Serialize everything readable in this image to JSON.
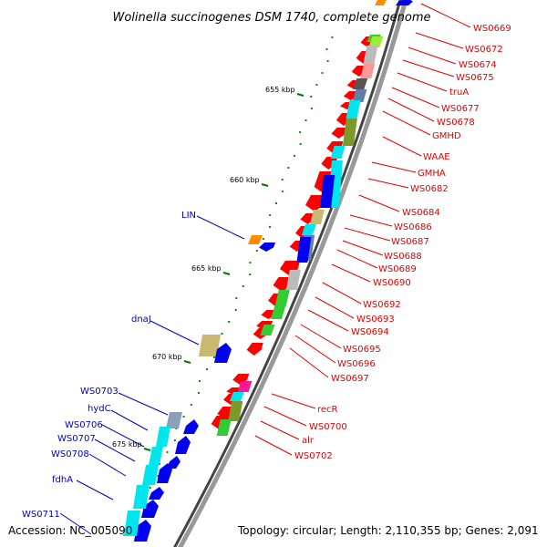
{
  "title": "Wolinella succinogenes DSM 1740, complete genome",
  "accession": "Accession: NC_005090",
  "topology": "Topology: circular; Length: 2,110,355 bp; Genes: 2,091",
  "ticks": [
    "655 kbp",
    "660 kbp",
    "665 kbp",
    "670 kbp",
    "675 kbp"
  ],
  "colors": {
    "red": "#ff0000",
    "blue": "#0000ee",
    "cyan": "#00e5ee",
    "green": "#33cc33",
    "olive": "#7a9a2a",
    "grey": "#bbbbbb",
    "khaki": "#c8b870",
    "orange": "#ff8c00",
    "magenta": "#ff1493",
    "pink": "#ff9999",
    "steel": "#5e7fa8",
    "darkgrey": "#555555",
    "lime": "#99ee33",
    "label_red": "#e00000",
    "label_blue": "#0000c0",
    "tick_green": "#007700"
  },
  "labels_right": [
    "WS0669",
    "WS0672",
    "WS0674",
    "WS0675",
    "truA",
    "WS0677",
    "WS0678",
    "GMHD",
    "WAAE",
    "GMHA",
    "WS0682",
    "WS0684",
    "WS0686",
    "WS0687",
    "WS0688",
    "WS0689",
    "WS0690",
    "WS0692",
    "WS0693",
    "WS0694",
    "WS0695",
    "WS0696",
    "WS0697",
    "recR",
    "WS0700",
    "alr",
    "WS0702"
  ],
  "labels_left": [
    "LIN",
    "dnaJ",
    "WS0703",
    "hydC",
    "WS0706",
    "WS0707",
    "WS0708",
    "fdhA",
    "WS0711"
  ],
  "genes": [
    {
      "strand": "outer-fwd",
      "color": "blue"
    },
    {
      "strand": "outer-fwd",
      "color": "orange"
    },
    {
      "strand": "inner-fwd",
      "color": "green"
    },
    {
      "strand": "inner-fwd",
      "color": "lime"
    },
    {
      "strand": "inner-fwd",
      "color": "grey"
    },
    {
      "strand": "inner-fwd",
      "color": "pink"
    },
    {
      "strand": "inner-fwd",
      "color": "darkgrey"
    },
    {
      "strand": "inner-fwd",
      "color": "steel"
    },
    {
      "strand": "inner-fwd",
      "color": "cyan"
    },
    {
      "strand": "inner-fwd",
      "color": "olive"
    },
    {
      "strand": "inner-fwd",
      "color": "cyan"
    },
    {
      "strand": "inner-fwd",
      "color": "blue"
    },
    {
      "strand": "inner-fwd",
      "color": "khaki"
    },
    {
      "strand": "inner-fwd",
      "color": "cyan"
    },
    {
      "strand": "inner-fwd",
      "color": "steel"
    },
    {
      "strand": "inner-fwd",
      "color": "blue"
    },
    {
      "strand": "inner-fwd",
      "color": "grey"
    },
    {
      "strand": "inner-fwd",
      "color": "green"
    },
    {
      "strand": "inner-fwd",
      "color": "green"
    },
    {
      "strand": "inner-fwd",
      "color": "green"
    },
    {
      "strand": "inner-fwd",
      "color": "magenta"
    },
    {
      "strand": "inner-fwd",
      "color": "cyan"
    },
    {
      "strand": "inner-fwd",
      "color": "olive"
    },
    {
      "strand": "inner-fwd",
      "color": "green"
    },
    {
      "strand": "outer-rev",
      "color": "blue"
    },
    {
      "strand": "outer-rev",
      "color": "blue"
    },
    {
      "strand": "outer-rev",
      "color": "khaki"
    },
    {
      "strand": "outer-rev",
      "color": "blue"
    },
    {
      "strand": "outer-rev",
      "color": "blue"
    },
    {
      "strand": "outer-rev",
      "color": "blue"
    },
    {
      "strand": "outer-rev",
      "color": "blue"
    },
    {
      "strand": "outer-rev",
      "color": "blue"
    },
    {
      "strand": "inner-rev",
      "color": "cyan"
    },
    {
      "strand": "inner-rev",
      "color": "cyan"
    },
    {
      "strand": "inner-rev",
      "color": "cyan"
    },
    {
      "strand": "inner-rev",
      "color": "steel"
    },
    {
      "strand": "inner-rev",
      "color": "grey"
    }
  ]
}
